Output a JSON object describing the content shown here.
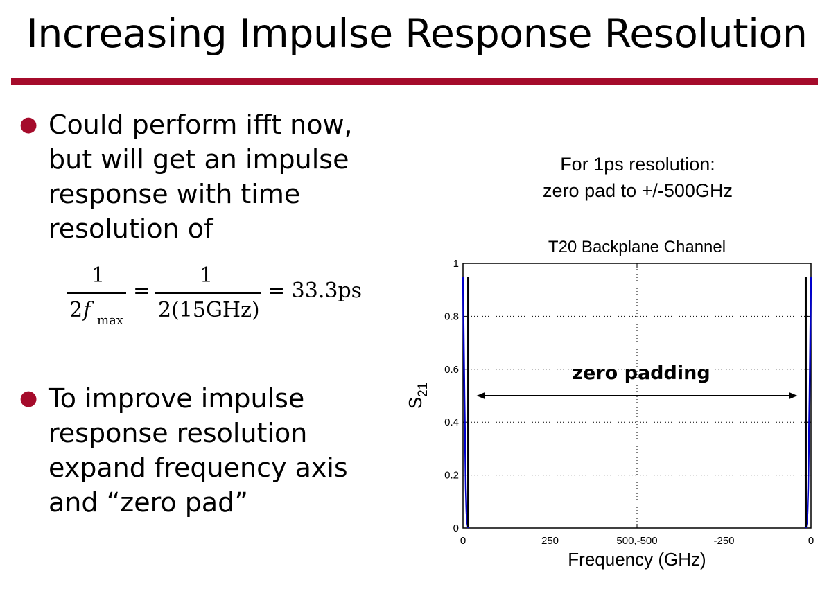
{
  "slide": {
    "title": "Increasing Impulse Response Resolution",
    "accent_color": "#a50b2b",
    "bullet_color": "#a50b2b"
  },
  "bullets": [
    {
      "lines": [
        "Could perform ifft now,",
        "but will get an impulse",
        "response with time",
        "resolution of"
      ]
    },
    {
      "lines": [
        "To improve impulse",
        "response resolution",
        "expand frequency axis",
        "and “zero pad”"
      ]
    }
  ],
  "formula": {
    "num1": "1",
    "den1_a": "2",
    "den1_f": "f",
    "den1_sub": "max",
    "eq1": "=",
    "num2": "1",
    "den2": "2(15GHz)",
    "result": "= 33.3ps"
  },
  "caption": {
    "line1": "For 1ps resolution:",
    "line2": "zero pad to +/-500GHz"
  },
  "chart_data": {
    "type": "line",
    "title": "T20 Backplane Channel",
    "xlabel": "Frequency (GHz)",
    "ylabel": "S",
    "ylabel_sub": "21",
    "x_tick_labels": [
      "0",
      "250",
      "500,-500",
      "-250",
      "0"
    ],
    "y_tick_labels": [
      "0",
      "0.2",
      "0.4",
      "0.6",
      "0.8",
      "1"
    ],
    "ylim": [
      0,
      1
    ],
    "grid": true,
    "annotation": "zero padding",
    "series": [
      {
        "color": "#0000cc",
        "x": [
          0,
          2,
          4,
          6,
          8,
          10,
          12,
          15
        ],
        "y": [
          0.95,
          0.72,
          0.5,
          0.33,
          0.15,
          0.06,
          0.02,
          0.0
        ]
      }
    ],
    "markers": {
      "color": "#000000",
      "height": 0.95
    }
  }
}
